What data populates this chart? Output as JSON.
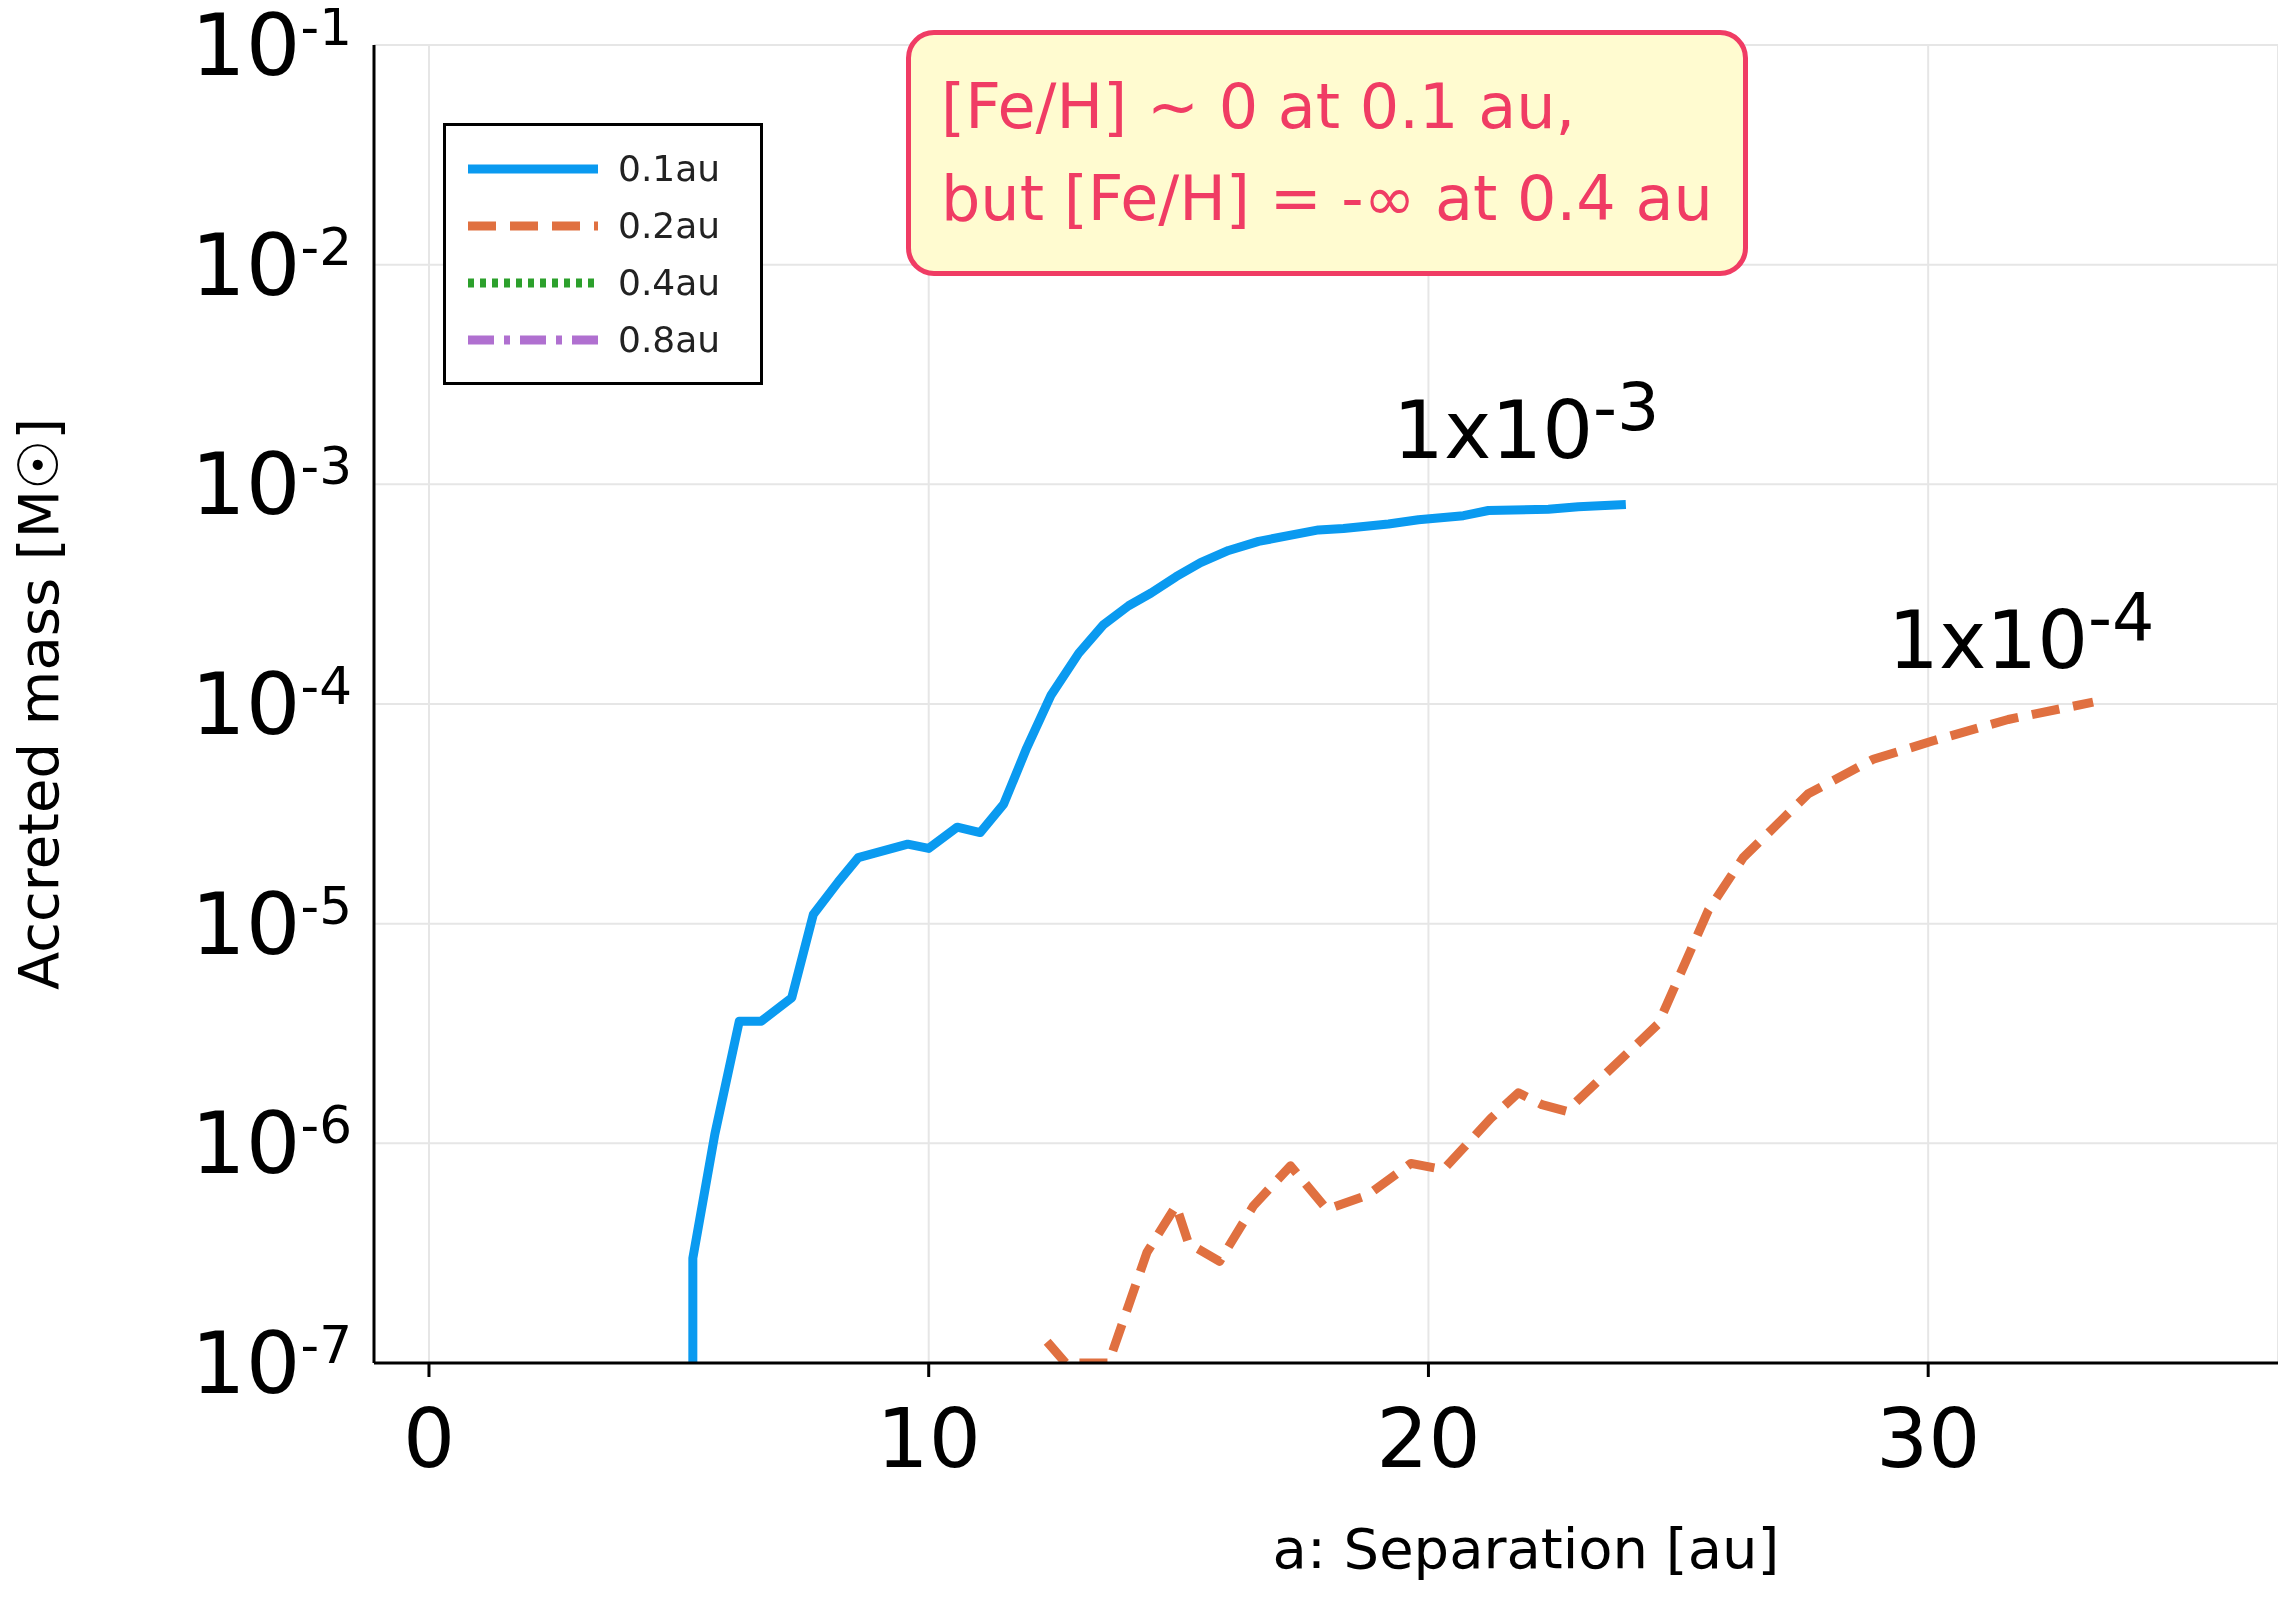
{
  "chart_data": {
    "type": "line",
    "xlabel": "a: Separation [au]",
    "ylabel": "Accreted mass [M☉]",
    "xlim": [
      -1.1,
      37
    ],
    "xticks": [
      0,
      10,
      20,
      30
    ],
    "ylim": [
      1e-07,
      0.1
    ],
    "yticks": [
      {
        "value": 1e-07,
        "label": "10$^{-7}$"
      },
      {
        "value": 1e-06,
        "label": "10$^{-6}$"
      },
      {
        "value": 1e-05,
        "label": "10$^{-5}$"
      },
      {
        "value": 0.0001,
        "label": "10$^{-4}$"
      },
      {
        "value": 0.001,
        "label": "10$^{-3}$"
      },
      {
        "value": 0.01,
        "label": "10$^{-2}$"
      },
      {
        "value": 0.1,
        "label": "10$^{-1}$"
      }
    ],
    "log": "y",
    "grid": true,
    "legend": "top left",
    "series": [
      {
        "name": "0.1au",
        "color": "#0a9af0",
        "line_style": "solid",
        "x": [
          5.28,
          5.28,
          5.72,
          6.21,
          6.65,
          7.26,
          7.69,
          8.19,
          8.59,
          9.58,
          10.0,
          10.57,
          11.03,
          11.5,
          11.96,
          12.45,
          13.0,
          13.5,
          14.0,
          14.45,
          14.95,
          15.44,
          16.0,
          16.6,
          17.8,
          18.3,
          19.2,
          19.8,
          20.7,
          21.2,
          22.4,
          23.0,
          23.95
        ],
        "values": [
          1e-07,
          3e-07,
          1.1e-06,
          3.6e-06,
          3.6e-06,
          4.6e-06,
          1.1e-05,
          1.55e-05,
          2e-05,
          2.3e-05,
          2.2e-05,
          2.75e-05,
          2.6e-05,
          3.5e-05,
          6.3e-05,
          0.00011,
          0.00017,
          0.00023,
          0.00028,
          0.00032,
          0.00038,
          0.00044,
          0.0005,
          0.00055,
          0.00062,
          0.00063,
          0.00066,
          0.00069,
          0.00072,
          0.00076,
          0.00077,
          0.00079,
          0.00081
        ]
      },
      {
        "name": "0.2au",
        "color": "#e07040",
        "line_style": "dashed",
        "x": [
          12.37,
          12.74,
          13.6,
          14.37,
          14.95,
          15.2,
          15.82,
          16.5,
          17.24,
          17.97,
          18.78,
          19.65,
          20.3,
          21.25,
          21.8,
          22.27,
          22.76,
          24.6,
          25.6,
          26.3,
          27.6,
          28.9,
          30.1,
          31.6,
          33.3
        ],
        "values": [
          1.25e-07,
          1e-07,
          1e-07,
          3.2e-07,
          5.2e-07,
          3.5e-07,
          2.9e-07,
          5.2e-07,
          7.9e-07,
          5e-07,
          5.8e-07,
          8.1e-07,
          7.6e-07,
          1.3e-06,
          1.7e-06,
          1.5e-06,
          1.4e-06,
          3.5e-06,
          1.15e-05,
          2e-05,
          3.9e-05,
          5.6e-05,
          6.8e-05,
          8.5e-05,
          0.000102
        ]
      },
      {
        "name": "0.4au",
        "color": "#2ca02c",
        "line_style": "dotted"
      },
      {
        "name": "0.8au",
        "color": "#b070d0",
        "line_style": "dashdot"
      }
    ],
    "annotations": [
      "[Fe/H] ~ 0 at 0.1 au,\nbut [Fe/H] = -∞ at 0.4 au",
      "1x10$^{-3}$",
      "1x10$^{-4}$"
    ]
  }
}
